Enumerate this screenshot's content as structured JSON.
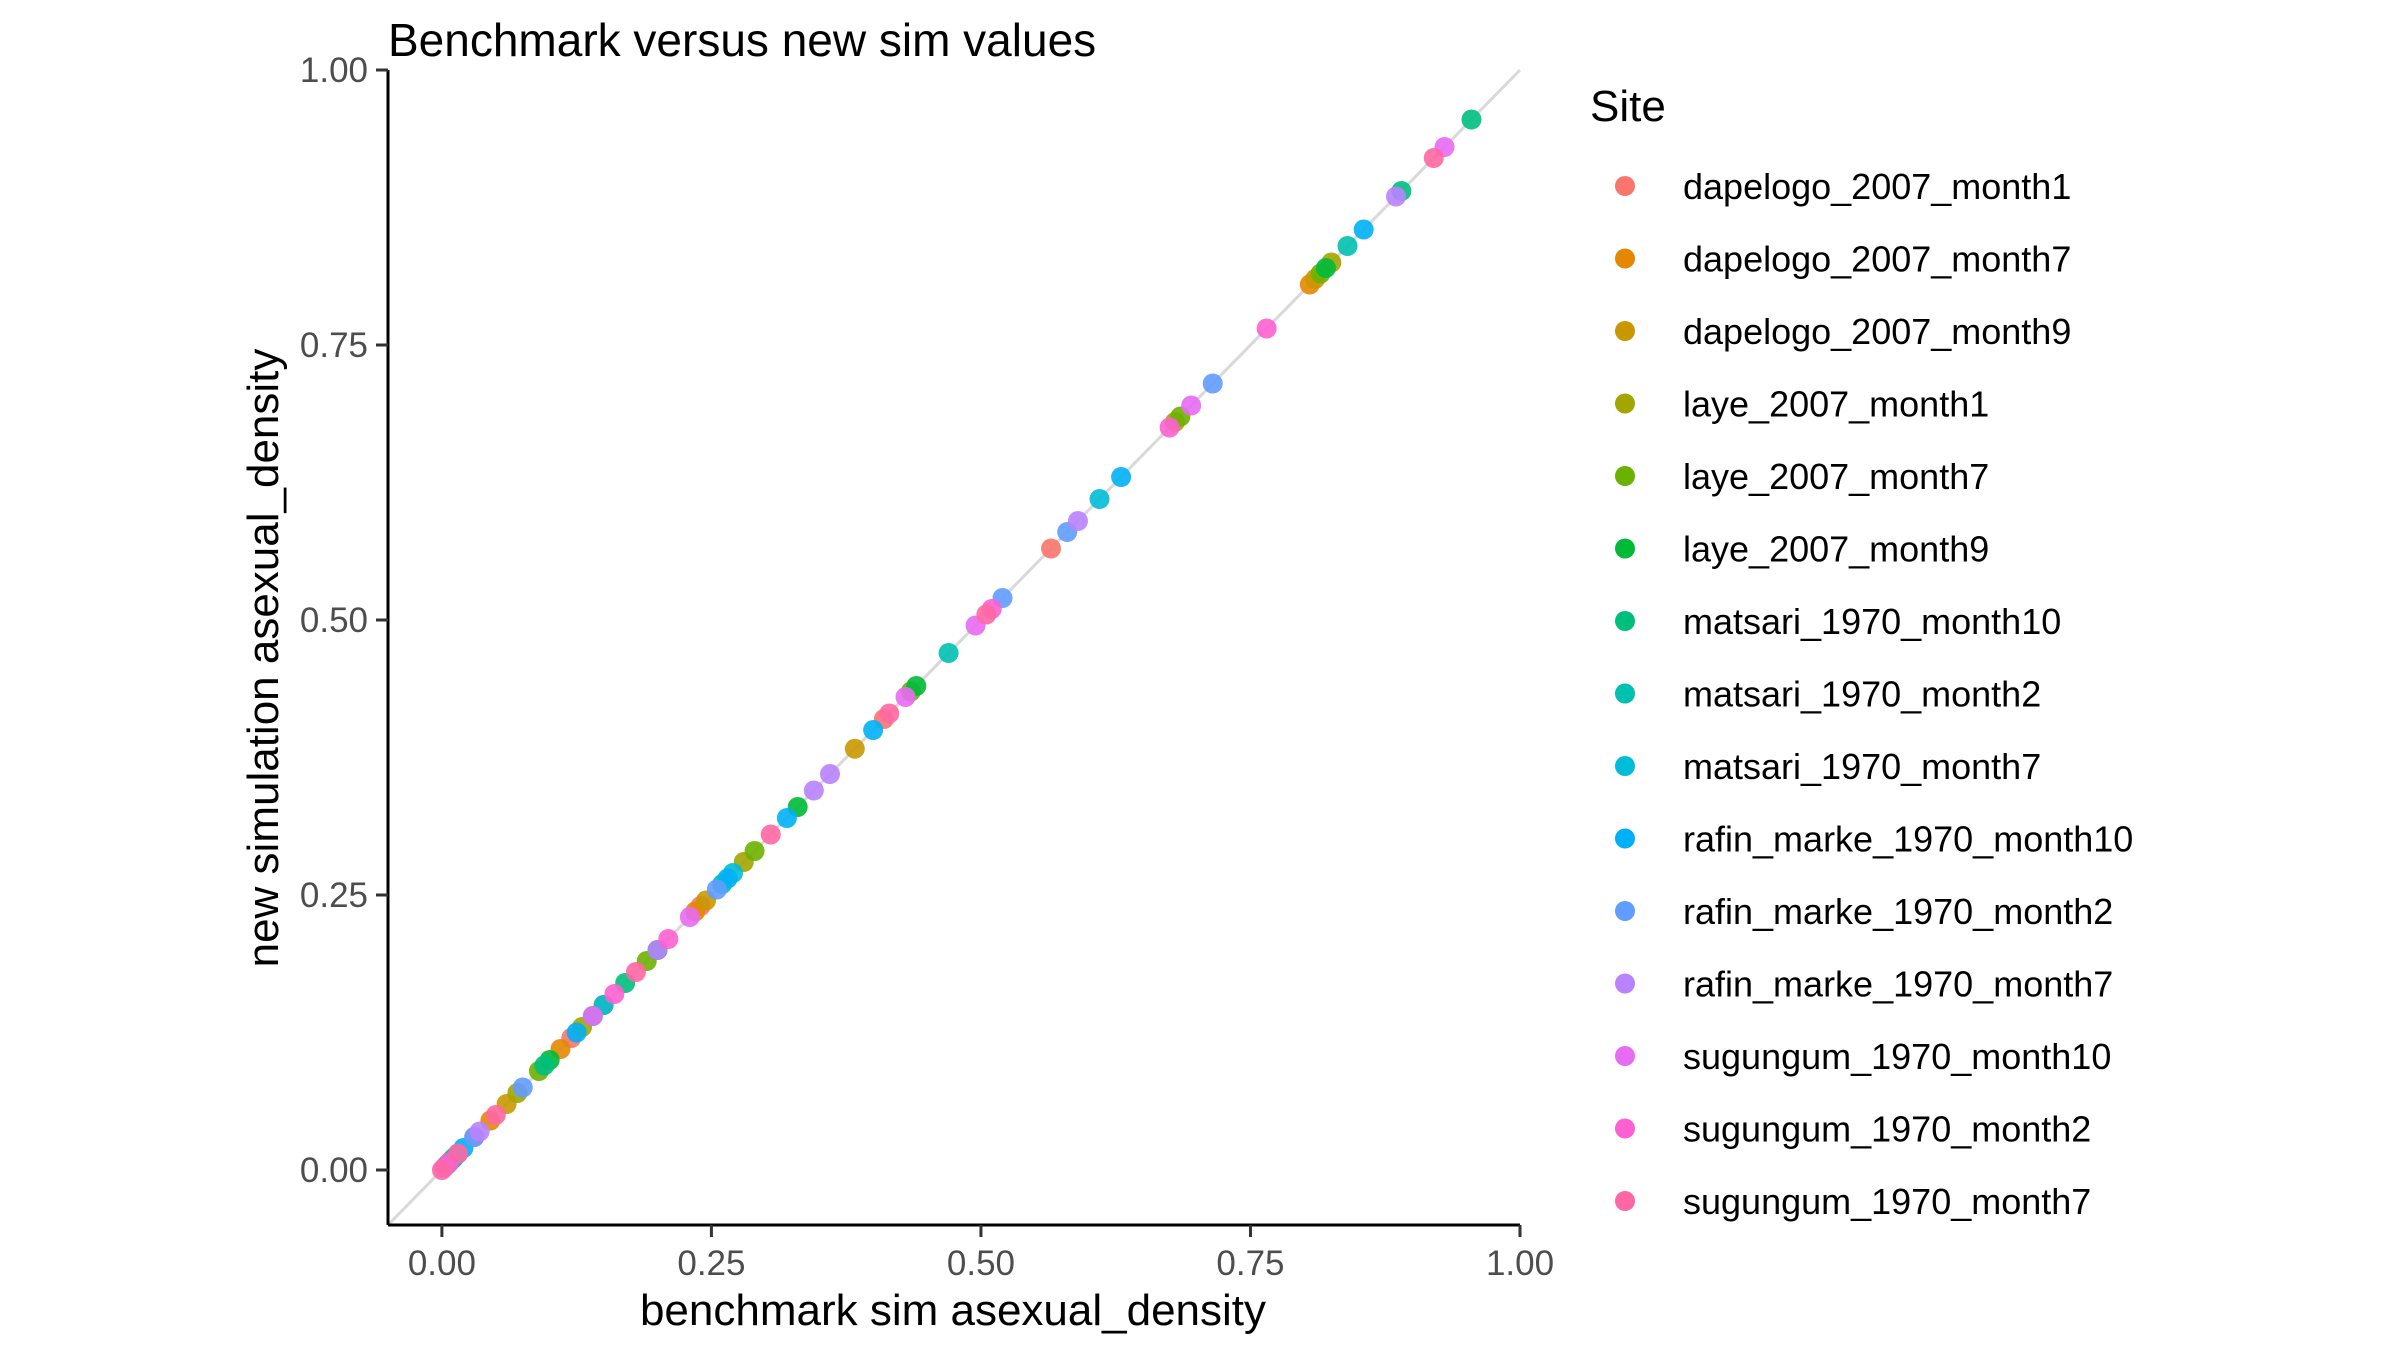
{
  "chart_data": {
    "type": "scatter",
    "title": "Benchmark versus new sim values",
    "xlabel": "benchmark sim asexual_density",
    "ylabel": "new simulation asexual_density",
    "xlim": [
      -0.05,
      1.0
    ],
    "ylim": [
      -0.05,
      1.0
    ],
    "x_ticks": [
      "0.00",
      "0.25",
      "0.50",
      "0.75",
      "1.00"
    ],
    "y_ticks": [
      "0.00",
      "0.25",
      "0.50",
      "0.75",
      "1.00"
    ],
    "x_tick_values": [
      0,
      0.25,
      0.5,
      0.75,
      1.0
    ],
    "y_tick_values": [
      0,
      0.25,
      0.5,
      0.75,
      1.0
    ],
    "reference_line": "y = x",
    "grid": false,
    "legend": {
      "title": "Site",
      "position": "right"
    },
    "series": [
      {
        "name": "dapelogo_2007_month1",
        "color": "#F8766D",
        "values": [
          0.003,
          0.03,
          0.12,
          0.24,
          0.41,
          0.565
        ]
      },
      {
        "name": "dapelogo_2007_month7",
        "color": "#E58700",
        "values": [
          0.006,
          0.045,
          0.11,
          0.235,
          0.805
        ]
      },
      {
        "name": "dapelogo_2007_month9",
        "color": "#C99800",
        "values": [
          0.004,
          0.06,
          0.15,
          0.245,
          0.383,
          0.81
        ]
      },
      {
        "name": "laye_2007_month1",
        "color": "#A3A500",
        "values": [
          0.005,
          0.07,
          0.13,
          0.28,
          0.68,
          0.825
        ]
      },
      {
        "name": "laye_2007_month7",
        "color": "#6BB100",
        "values": [
          0.008,
          0.09,
          0.19,
          0.29,
          0.435,
          0.685,
          0.815
        ]
      },
      {
        "name": "laye_2007_month9",
        "color": "#00BA38",
        "values": [
          0.01,
          0.1,
          0.2,
          0.33,
          0.44,
          0.82
        ]
      },
      {
        "name": "matsari_1970_month10",
        "color": "#00BF7D",
        "values": [
          0.006,
          0.095,
          0.17,
          0.89,
          0.955
        ]
      },
      {
        "name": "matsari_1970_month2",
        "color": "#00C0AF",
        "values": [
          0.012,
          0.14,
          0.26,
          0.47,
          0.84
        ]
      },
      {
        "name": "matsari_1970_month7",
        "color": "#00BCD8",
        "values": [
          0.015,
          0.15,
          0.27,
          0.61
        ]
      },
      {
        "name": "rafin_marke_1970_month10",
        "color": "#00B0F6",
        "values": [
          0.02,
          0.125,
          0.265,
          0.32,
          0.4,
          0.63,
          0.855
        ]
      },
      {
        "name": "rafin_marke_1970_month2",
        "color": "#619CFF",
        "values": [
          0.03,
          0.075,
          0.255,
          0.52,
          0.58,
          0.715
        ]
      },
      {
        "name": "rafin_marke_1970_month7",
        "color": "#B983FF",
        "values": [
          0.035,
          0.2,
          0.345,
          0.36,
          0.59,
          0.885
        ]
      },
      {
        "name": "sugungum_1970_month10",
        "color": "#E76BF3",
        "values": [
          0.002,
          0.14,
          0.23,
          0.43,
          0.495,
          0.695,
          0.93
        ]
      },
      {
        "name": "sugungum_1970_month2",
        "color": "#FD61D1",
        "values": [
          0.007,
          0.16,
          0.21,
          0.51,
          0.675,
          0.765
        ]
      },
      {
        "name": "sugungum_1970_month7",
        "color": "#FF67A4",
        "values": [
          0.0,
          0.015,
          0.05,
          0.18,
          0.305,
          0.415,
          0.505,
          0.92
        ]
      }
    ]
  }
}
